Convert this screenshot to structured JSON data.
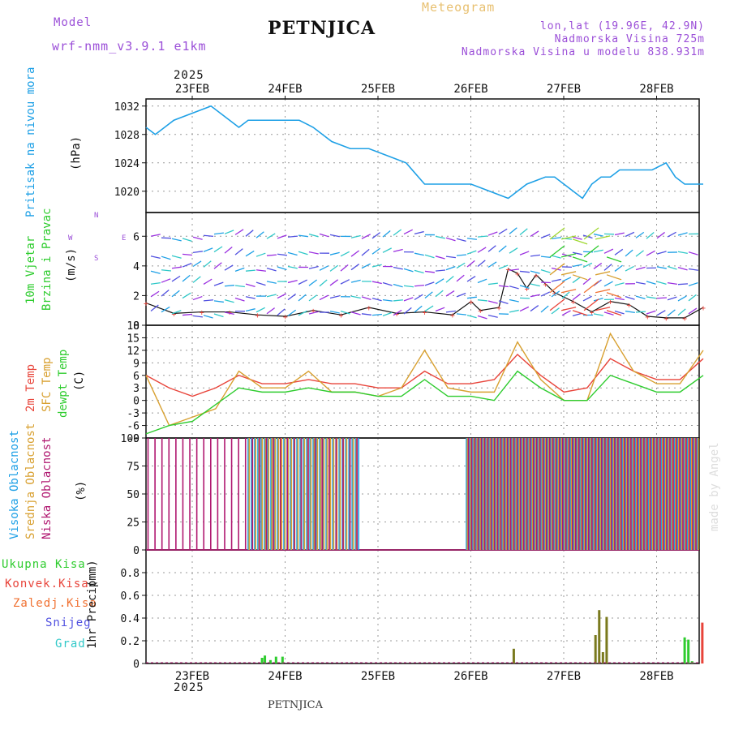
{
  "header": {
    "model_label": "Model",
    "model_name": "wrf-nmm_v3.9.1  e1km",
    "station": "PETNJICA",
    "meteogram": "Meteogram",
    "lonlat": "lon,lat (19.96E, 42.9N)",
    "altitude": "Nadmorska Visina 725m",
    "model_altitude": "Nadmorska Visina u modelu 838.931m",
    "year_top": "2025",
    "year_bottom": "2025",
    "footer_station": "PETNJICA",
    "credit": "made by Angel"
  },
  "colors": {
    "pressure": "#1ea0e6",
    "temp2m": "#e8443a",
    "sfc": "#d8a030",
    "dewpt": "#2ecc2e",
    "high_cloud": "#1ea0e6",
    "mid_cloud": "#d8a030",
    "low_cloud": "#b01870",
    "total_precip": "#2ecc2e",
    "convective": "#e8443a",
    "frozen": "#f07030",
    "snow": "#5050e0",
    "graupel": "#30c8c8",
    "model_label": "#9b4fd8",
    "meteogram_label": "#e8c070"
  },
  "chart_data": [
    {
      "type": "line",
      "panel": "pressure",
      "ylabel": "Pritisak na nivou mora",
      "unit": "(hPa)",
      "xticks": [
        "23FEB",
        "24FEB",
        "25FEB",
        "26FEB",
        "27FEB",
        "28FEB"
      ],
      "yticks": [
        1020,
        1024,
        1028,
        1032
      ],
      "ylim": [
        1017,
        1033
      ],
      "x_days": [
        0,
        0.1,
        0.2,
        0.3,
        0.5,
        0.7,
        0.9,
        1.0,
        1.1,
        1.2,
        1.35,
        1.5,
        1.65,
        1.8,
        2.0,
        2.2,
        2.4,
        2.6,
        2.8,
        3.0,
        3.2,
        3.35,
        3.5,
        3.7,
        3.9,
        4.1,
        4.3,
        4.4,
        4.5,
        4.6,
        4.7,
        4.8,
        4.9,
        5.0,
        5.1,
        5.2,
        5.3,
        5.45,
        5.6,
        5.7,
        5.8,
        5.9,
        6.0
      ],
      "series": [
        {
          "values": [
            1029,
            1028,
            1029,
            1030,
            1031,
            1032,
            1030,
            1029,
            1030,
            1030,
            1030,
            1030,
            1030,
            1029,
            1027,
            1026,
            1026,
            1025,
            1024,
            1021,
            1021,
            1021,
            1021,
            1020,
            1019,
            1021,
            1022,
            1022,
            1021,
            1020,
            1019,
            1021,
            1022,
            1022,
            1023,
            1023,
            1023,
            1023,
            1024,
            1022,
            1021,
            1021,
            1021
          ]
        }
      ],
      "grid": true
    },
    {
      "type": "line",
      "panel": "wind",
      "ylabel": [
        "10m Vjetar",
        "Brzina i Pravac"
      ],
      "unit": "(m/s)",
      "compass": [
        "N",
        "W",
        "E",
        "S"
      ],
      "yticks": [
        0,
        2,
        4,
        6
      ],
      "ylim": [
        0,
        7.6
      ],
      "x_days": [
        0,
        0.3,
        0.6,
        0.9,
        1.2,
        1.5,
        1.8,
        2.1,
        2.4,
        2.7,
        3.0,
        3.3,
        3.5,
        3.6,
        3.8,
        3.9,
        4.0,
        4.1,
        4.2,
        4.3,
        4.4,
        4.6,
        4.8,
        5.0,
        5.2,
        5.4,
        5.6,
        5.8,
        6.0
      ],
      "series": [
        {
          "values": [
            1.5,
            0.8,
            0.9,
            0.9,
            0.7,
            0.6,
            1.0,
            0.7,
            1.2,
            0.8,
            0.9,
            0.7,
            1.6,
            1.0,
            1.2,
            3.8,
            3.5,
            2.5,
            3.4,
            2.8,
            2.2,
            1.6,
            0.9,
            1.6,
            1.4,
            0.6,
            0.5,
            0.5,
            1.2
          ]
        }
      ],
      "grid": true
    },
    {
      "type": "line",
      "panel": "temperature",
      "ylabel": [
        "2m Temp",
        "SFC Temp",
        "dewpt Temp"
      ],
      "unit": "(C)",
      "yticks": [
        -9,
        -6,
        -3,
        0,
        3,
        6,
        9,
        12,
        15,
        18
      ],
      "ylim": [
        -9,
        18
      ],
      "x_days": [
        0,
        0.25,
        0.5,
        0.75,
        1.0,
        1.25,
        1.5,
        1.75,
        2.0,
        2.25,
        2.5,
        2.75,
        3.0,
        3.25,
        3.5,
        3.75,
        4.0,
        4.25,
        4.5,
        4.75,
        5.0,
        5.25,
        5.5,
        5.75,
        6.0
      ],
      "series": [
        {
          "name": "2m Temp",
          "values": [
            6,
            3,
            1,
            3,
            6,
            4,
            4,
            5,
            4,
            4,
            3,
            3,
            7,
            4,
            4,
            5,
            11,
            6,
            2,
            3,
            10,
            7,
            5,
            5,
            10
          ]
        },
        {
          "name": "SFC Temp",
          "values": [
            6,
            -6,
            -4,
            -2,
            7,
            3,
            3,
            7,
            2,
            2,
            1,
            3,
            12,
            3,
            2,
            2,
            14,
            5,
            0,
            0,
            16,
            7,
            4,
            4,
            12
          ]
        },
        {
          "name": "dewpt Temp",
          "values": [
            -8,
            -6,
            -5,
            -1,
            3,
            2,
            2,
            3,
            2,
            2,
            1,
            1,
            5,
            1,
            1,
            0,
            7,
            3,
            0,
            0,
            6,
            4,
            2,
            2,
            6
          ]
        }
      ],
      "grid": true
    },
    {
      "type": "bar",
      "panel": "clouds",
      "ylabel": [
        "Visoka Oblacnost",
        "Srednja Oblacnost",
        "Niska Oblacnost"
      ],
      "unit": "(%)",
      "yticks": [
        0,
        25,
        50,
        75,
        100
      ],
      "ylim": [
        0,
        100
      ],
      "series": [
        {
          "name": "Visoka Oblacnost",
          "ranges_days": [
            [
              1.1,
              2.3
            ],
            [
              3.45,
              6.0
            ]
          ],
          "value": 100
        },
        {
          "name": "Srednja Oblacnost",
          "ranges_days": [
            [
              1.1,
              2.3
            ],
            [
              3.45,
              6.0
            ]
          ],
          "value": 100
        },
        {
          "name": "Niska Oblacnost",
          "ranges_days": [
            [
              0,
              2.3
            ],
            [
              3.45,
              6.0
            ]
          ],
          "value": 100
        }
      ],
      "grid": true
    },
    {
      "type": "bar",
      "panel": "precip",
      "ylabel": "1hr Precip",
      "unit": "(mm)",
      "legend": [
        "Ukupna Kisa",
        "Konvek.Kisa",
        "Zaledj.Kisa",
        "Snijeg",
        "Grad"
      ],
      "yticks": [
        0,
        0.2,
        0.4,
        0.6,
        0.8
      ],
      "ylim": [
        0,
        1.0
      ],
      "bars": [
        {
          "day": 1.25,
          "total": 0.05,
          "color": "total_precip"
        },
        {
          "day": 1.28,
          "total": 0.07,
          "color": "total_precip"
        },
        {
          "day": 1.34,
          "total": 0.03,
          "color": "total_precip"
        },
        {
          "day": 1.4,
          "total": 0.06,
          "color": "total_precip"
        },
        {
          "day": 1.47,
          "total": 0.06,
          "color": "total_precip"
        },
        {
          "day": 3.96,
          "total": 0.13,
          "color": "mixed"
        },
        {
          "day": 4.84,
          "total": 0.25,
          "color": "mixed"
        },
        {
          "day": 4.88,
          "total": 0.47,
          "color": "mixed"
        },
        {
          "day": 4.92,
          "total": 0.1,
          "color": "mixed"
        },
        {
          "day": 4.96,
          "total": 0.41,
          "color": "mixed"
        },
        {
          "day": 5.8,
          "total": 0.23,
          "color": "total_precip"
        },
        {
          "day": 5.84,
          "total": 0.21,
          "color": "total_precip"
        },
        {
          "day": 5.88,
          "total": 0.02,
          "color": "total_precip"
        },
        {
          "day": 5.99,
          "total": 0.36,
          "color": "convective"
        }
      ],
      "grid": true
    }
  ]
}
